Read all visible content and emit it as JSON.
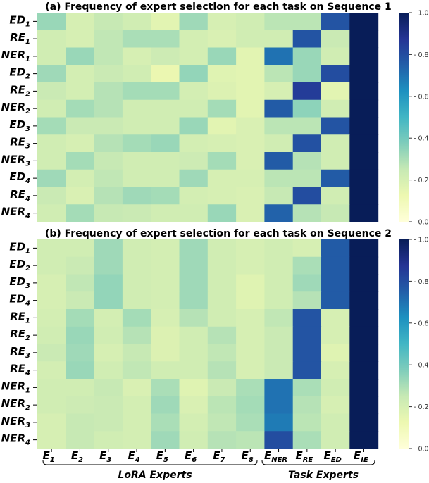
{
  "chart_data": [
    {
      "type": "heatmap",
      "title": "(a) Frequency of expert selection for each task on Sequence 1",
      "rows": [
        {
          "base": "ED",
          "sub": "1"
        },
        {
          "base": "RE",
          "sub": "1"
        },
        {
          "base": "NER",
          "sub": "1"
        },
        {
          "base": "ED",
          "sub": "2"
        },
        {
          "base": "RE",
          "sub": "2"
        },
        {
          "base": "NER",
          "sub": "2"
        },
        {
          "base": "ED",
          "sub": "3"
        },
        {
          "base": "RE",
          "sub": "3"
        },
        {
          "base": "NER",
          "sub": "3"
        },
        {
          "base": "ED",
          "sub": "4"
        },
        {
          "base": "RE",
          "sub": "4"
        },
        {
          "base": "NER",
          "sub": "4"
        }
      ],
      "values": [
        [
          0.33,
          0.2,
          0.25,
          0.22,
          0.16,
          0.32,
          0.2,
          0.22,
          0.27,
          0.27,
          0.78,
          1.0
        ],
        [
          0.22,
          0.2,
          0.26,
          0.3,
          0.3,
          0.21,
          0.19,
          0.22,
          0.22,
          0.78,
          0.24,
          1.0
        ],
        [
          0.22,
          0.33,
          0.26,
          0.2,
          0.23,
          0.21,
          0.33,
          0.16,
          0.7,
          0.33,
          0.22,
          1.0
        ],
        [
          0.32,
          0.21,
          0.24,
          0.22,
          0.13,
          0.34,
          0.17,
          0.16,
          0.27,
          0.33,
          0.8,
          1.0
        ],
        [
          0.24,
          0.21,
          0.28,
          0.31,
          0.31,
          0.21,
          0.18,
          0.16,
          0.2,
          0.85,
          0.16,
          1.0
        ],
        [
          0.22,
          0.31,
          0.28,
          0.22,
          0.22,
          0.22,
          0.31,
          0.16,
          0.76,
          0.35,
          0.22,
          1.0
        ],
        [
          0.31,
          0.24,
          0.24,
          0.22,
          0.22,
          0.33,
          0.16,
          0.19,
          0.27,
          0.27,
          0.78,
          1.0
        ],
        [
          0.22,
          0.2,
          0.28,
          0.31,
          0.33,
          0.21,
          0.2,
          0.19,
          0.22,
          0.79,
          0.22,
          1.0
        ],
        [
          0.22,
          0.31,
          0.25,
          0.22,
          0.22,
          0.23,
          0.31,
          0.19,
          0.76,
          0.28,
          0.22,
          1.0
        ],
        [
          0.32,
          0.21,
          0.26,
          0.22,
          0.22,
          0.32,
          0.2,
          0.2,
          0.27,
          0.27,
          0.76,
          1.0
        ],
        [
          0.24,
          0.19,
          0.28,
          0.32,
          0.31,
          0.21,
          0.2,
          0.19,
          0.25,
          0.8,
          0.22,
          1.0
        ],
        [
          0.22,
          0.31,
          0.25,
          0.24,
          0.22,
          0.22,
          0.33,
          0.19,
          0.74,
          0.28,
          0.25,
          1.0
        ]
      ]
    },
    {
      "type": "heatmap",
      "title": "(b) Frequency of expert selection for each task on Sequence 2",
      "rows": [
        {
          "base": "ED",
          "sub": "1"
        },
        {
          "base": "ED",
          "sub": "2"
        },
        {
          "base": "ED",
          "sub": "3"
        },
        {
          "base": "ED",
          "sub": "4"
        },
        {
          "base": "RE",
          "sub": "1"
        },
        {
          "base": "RE",
          "sub": "2"
        },
        {
          "base": "RE",
          "sub": "3"
        },
        {
          "base": "RE",
          "sub": "4"
        },
        {
          "base": "NER",
          "sub": "1"
        },
        {
          "base": "NER",
          "sub": "2"
        },
        {
          "base": "NER",
          "sub": "3"
        },
        {
          "base": "NER",
          "sub": "4"
        }
      ],
      "values": [
        [
          0.22,
          0.22,
          0.32,
          0.22,
          0.21,
          0.32,
          0.22,
          0.2,
          0.22,
          0.2,
          0.76,
          1.0
        ],
        [
          0.22,
          0.24,
          0.32,
          0.22,
          0.21,
          0.32,
          0.22,
          0.2,
          0.22,
          0.3,
          0.76,
          1.0
        ],
        [
          0.2,
          0.26,
          0.34,
          0.22,
          0.21,
          0.32,
          0.22,
          0.17,
          0.22,
          0.32,
          0.76,
          1.0
        ],
        [
          0.2,
          0.24,
          0.34,
          0.22,
          0.21,
          0.32,
          0.22,
          0.17,
          0.22,
          0.28,
          0.76,
          1.0
        ],
        [
          0.21,
          0.31,
          0.21,
          0.31,
          0.2,
          0.28,
          0.22,
          0.2,
          0.26,
          0.78,
          0.2,
          1.0
        ],
        [
          0.22,
          0.33,
          0.22,
          0.28,
          0.18,
          0.22,
          0.28,
          0.2,
          0.24,
          0.78,
          0.2,
          1.0
        ],
        [
          0.24,
          0.32,
          0.2,
          0.25,
          0.18,
          0.22,
          0.26,
          0.2,
          0.24,
          0.78,
          0.17,
          1.0
        ],
        [
          0.21,
          0.33,
          0.22,
          0.26,
          0.22,
          0.22,
          0.28,
          0.2,
          0.24,
          0.78,
          0.2,
          1.0
        ],
        [
          0.22,
          0.22,
          0.25,
          0.19,
          0.3,
          0.17,
          0.24,
          0.3,
          0.7,
          0.3,
          0.22,
          1.0
        ],
        [
          0.22,
          0.23,
          0.24,
          0.21,
          0.32,
          0.19,
          0.27,
          0.31,
          0.7,
          0.28,
          0.2,
          1.0
        ],
        [
          0.2,
          0.25,
          0.24,
          0.21,
          0.3,
          0.21,
          0.26,
          0.3,
          0.68,
          0.27,
          0.22,
          1.0
        ],
        [
          0.2,
          0.25,
          0.22,
          0.21,
          0.32,
          0.22,
          0.28,
          0.27,
          0.8,
          0.3,
          0.22,
          1.0
        ]
      ]
    }
  ],
  "columns": [
    {
      "base": "E",
      "sub": "1"
    },
    {
      "base": "E",
      "sub": "2"
    },
    {
      "base": "E",
      "sub": "3"
    },
    {
      "base": "E",
      "sub": "4"
    },
    {
      "base": "E",
      "sub": "5"
    },
    {
      "base": "E",
      "sub": "6"
    },
    {
      "base": "E",
      "sub": "7"
    },
    {
      "base": "E",
      "sub": "8"
    },
    {
      "base": "E",
      "sub": "NER"
    },
    {
      "base": "E",
      "sub": "RE"
    },
    {
      "base": "E",
      "sub": "ED"
    },
    {
      "base": "E",
      "sub": "IE"
    }
  ],
  "groups": {
    "lora": "LoRA Experts",
    "task": "Task Experts"
  },
  "colorbar": {
    "range": [
      0.0,
      1.0
    ],
    "ticks": [
      "0.0",
      "0.2",
      "0.4",
      "0.6",
      "0.8",
      "1.0"
    ],
    "colormap": "YlGnBu"
  }
}
